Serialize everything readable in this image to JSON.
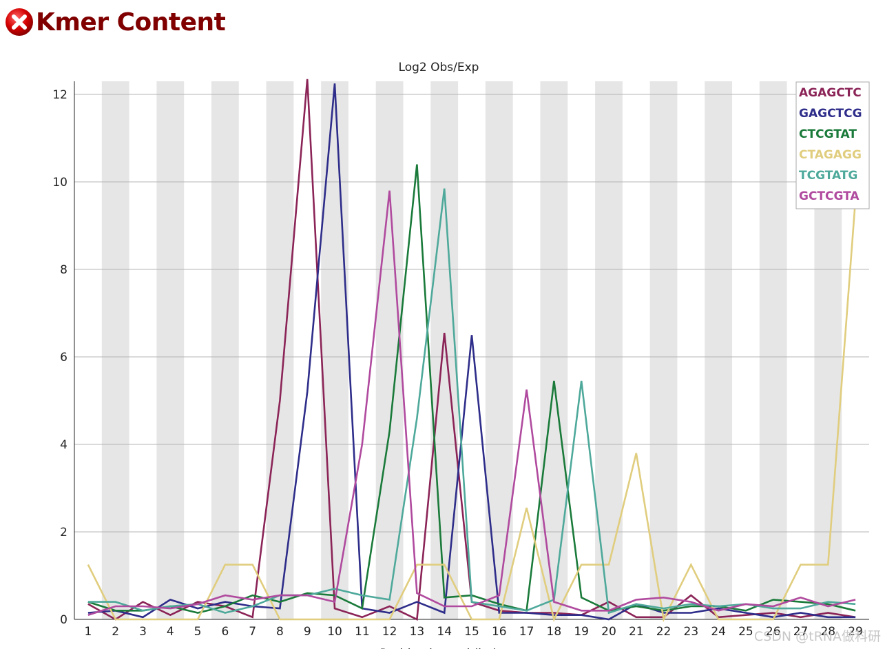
{
  "header": {
    "title": "Kmer Content",
    "status_icon": "fail-icon",
    "status_color": "#cc0000"
  },
  "watermark": "CSDN @tRNA做科研",
  "chart_data": {
    "type": "line",
    "title": "Log2 Obs/Exp",
    "xlabel": "Position in read (bp)",
    "ylabel": "",
    "categories": [
      "1",
      "2",
      "3",
      "4",
      "5",
      "6",
      "7",
      "8",
      "9",
      "10",
      "11",
      "12",
      "13",
      "14",
      "15",
      "16",
      "17",
      "18",
      "19",
      "20",
      "21",
      "22",
      "23",
      "24",
      "25",
      "26",
      "27",
      "28",
      "29"
    ],
    "ylim": [
      0,
      12.3
    ],
    "yticks": [
      0,
      2,
      4,
      6,
      8,
      10,
      12
    ],
    "grid": true,
    "alternating_column_shading": true,
    "legend_position": "top-right",
    "series": [
      {
        "name": "AGAGCTC",
        "color": "#8b2457",
        "values": [
          0.35,
          0.0,
          0.4,
          0.1,
          0.4,
          0.3,
          0.05,
          5.0,
          12.35,
          0.25,
          0.05,
          0.3,
          0.0,
          6.55,
          0.4,
          0.2,
          0.15,
          0.15,
          0.1,
          0.4,
          0.05,
          0.05,
          0.55,
          0.05,
          0.1,
          0.15,
          0.05,
          0.15,
          0.05
        ]
      },
      {
        "name": "GAGCTCG",
        "color": "#2e2d8a",
        "values": [
          0.15,
          0.2,
          0.05,
          0.45,
          0.25,
          0.4,
          0.3,
          0.25,
          5.2,
          12.25,
          0.25,
          0.15,
          0.4,
          0.15,
          6.5,
          0.15,
          0.15,
          0.1,
          0.1,
          0.0,
          0.35,
          0.15,
          0.15,
          0.25,
          0.15,
          0.05,
          0.15,
          0.05,
          0.05
        ]
      },
      {
        "name": "CTCGTAT",
        "color": "#1a7a3a",
        "values": [
          0.4,
          0.2,
          0.2,
          0.3,
          0.15,
          0.3,
          0.55,
          0.4,
          0.6,
          0.55,
          0.25,
          4.3,
          10.4,
          0.5,
          0.55,
          0.35,
          0.2,
          5.45,
          0.5,
          0.2,
          0.3,
          0.2,
          0.3,
          0.3,
          0.2,
          0.45,
          0.4,
          0.35,
          0.2
        ]
      },
      {
        "name": "CTAGAGG",
        "color": "#e0cd7e",
        "values": [
          1.25,
          0.0,
          0.0,
          0.0,
          0.0,
          1.25,
          1.25,
          0.0,
          0.0,
          0.0,
          0.0,
          0.0,
          1.25,
          1.25,
          0.0,
          0.0,
          2.55,
          0.0,
          1.25,
          1.25,
          3.8,
          0.0,
          1.25,
          0.0,
          0.0,
          0.0,
          1.25,
          1.25,
          9.6
        ]
      },
      {
        "name": "TCGTATG",
        "color": "#4ea99b",
        "values": [
          0.4,
          0.4,
          0.2,
          0.3,
          0.35,
          0.15,
          0.3,
          0.55,
          0.55,
          0.7,
          0.55,
          0.45,
          4.6,
          9.85,
          0.4,
          0.3,
          0.2,
          0.45,
          5.45,
          0.15,
          0.35,
          0.25,
          0.35,
          0.3,
          0.35,
          0.25,
          0.25,
          0.4,
          0.35
        ]
      },
      {
        "name": "GCTCGTA",
        "color": "#b04a9e",
        "values": [
          0.1,
          0.3,
          0.3,
          0.25,
          0.35,
          0.55,
          0.45,
          0.55,
          0.55,
          0.4,
          4.0,
          9.8,
          0.6,
          0.3,
          0.3,
          0.55,
          5.25,
          0.4,
          0.2,
          0.2,
          0.45,
          0.5,
          0.4,
          0.2,
          0.35,
          0.3,
          0.5,
          0.3,
          0.45
        ]
      }
    ]
  }
}
